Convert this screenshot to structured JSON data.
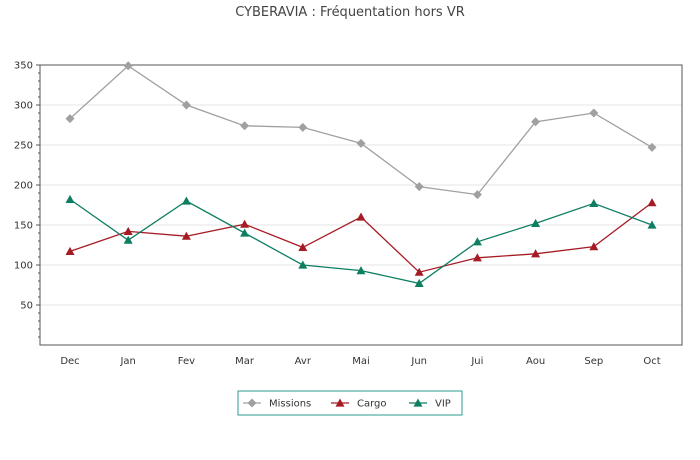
{
  "chart_data": {
    "type": "line",
    "title": "CYBERAVIA : Fréquentation hors VR",
    "xlabel": "",
    "ylabel": "",
    "categories": [
      "Dec",
      "Jan",
      "Fev",
      "Mar",
      "Avr",
      "Mai",
      "Jun",
      "Jui",
      "Aou",
      "Sep",
      "Oct"
    ],
    "ylim": [
      0,
      350
    ],
    "yticks": [
      50,
      100,
      150,
      200,
      250,
      300,
      350
    ],
    "grid": true,
    "legend_position": "bottom-center",
    "series": [
      {
        "name": "Missions",
        "color": "#a0a0a0",
        "marker": "diamond",
        "values": [
          283,
          349,
          300,
          274,
          272,
          252,
          198,
          188,
          279,
          290,
          247
        ]
      },
      {
        "name": "Cargo",
        "color": "#a51c24",
        "marker": "triangle",
        "values": [
          117,
          142,
          136,
          151,
          122,
          160,
          91,
          109,
          114,
          123,
          178
        ]
      },
      {
        "name": "VIP",
        "color": "#0e7e62",
        "marker": "triangle",
        "values": [
          182,
          131,
          180,
          140,
          100,
          93,
          77,
          129,
          152,
          177,
          150
        ]
      }
    ]
  }
}
